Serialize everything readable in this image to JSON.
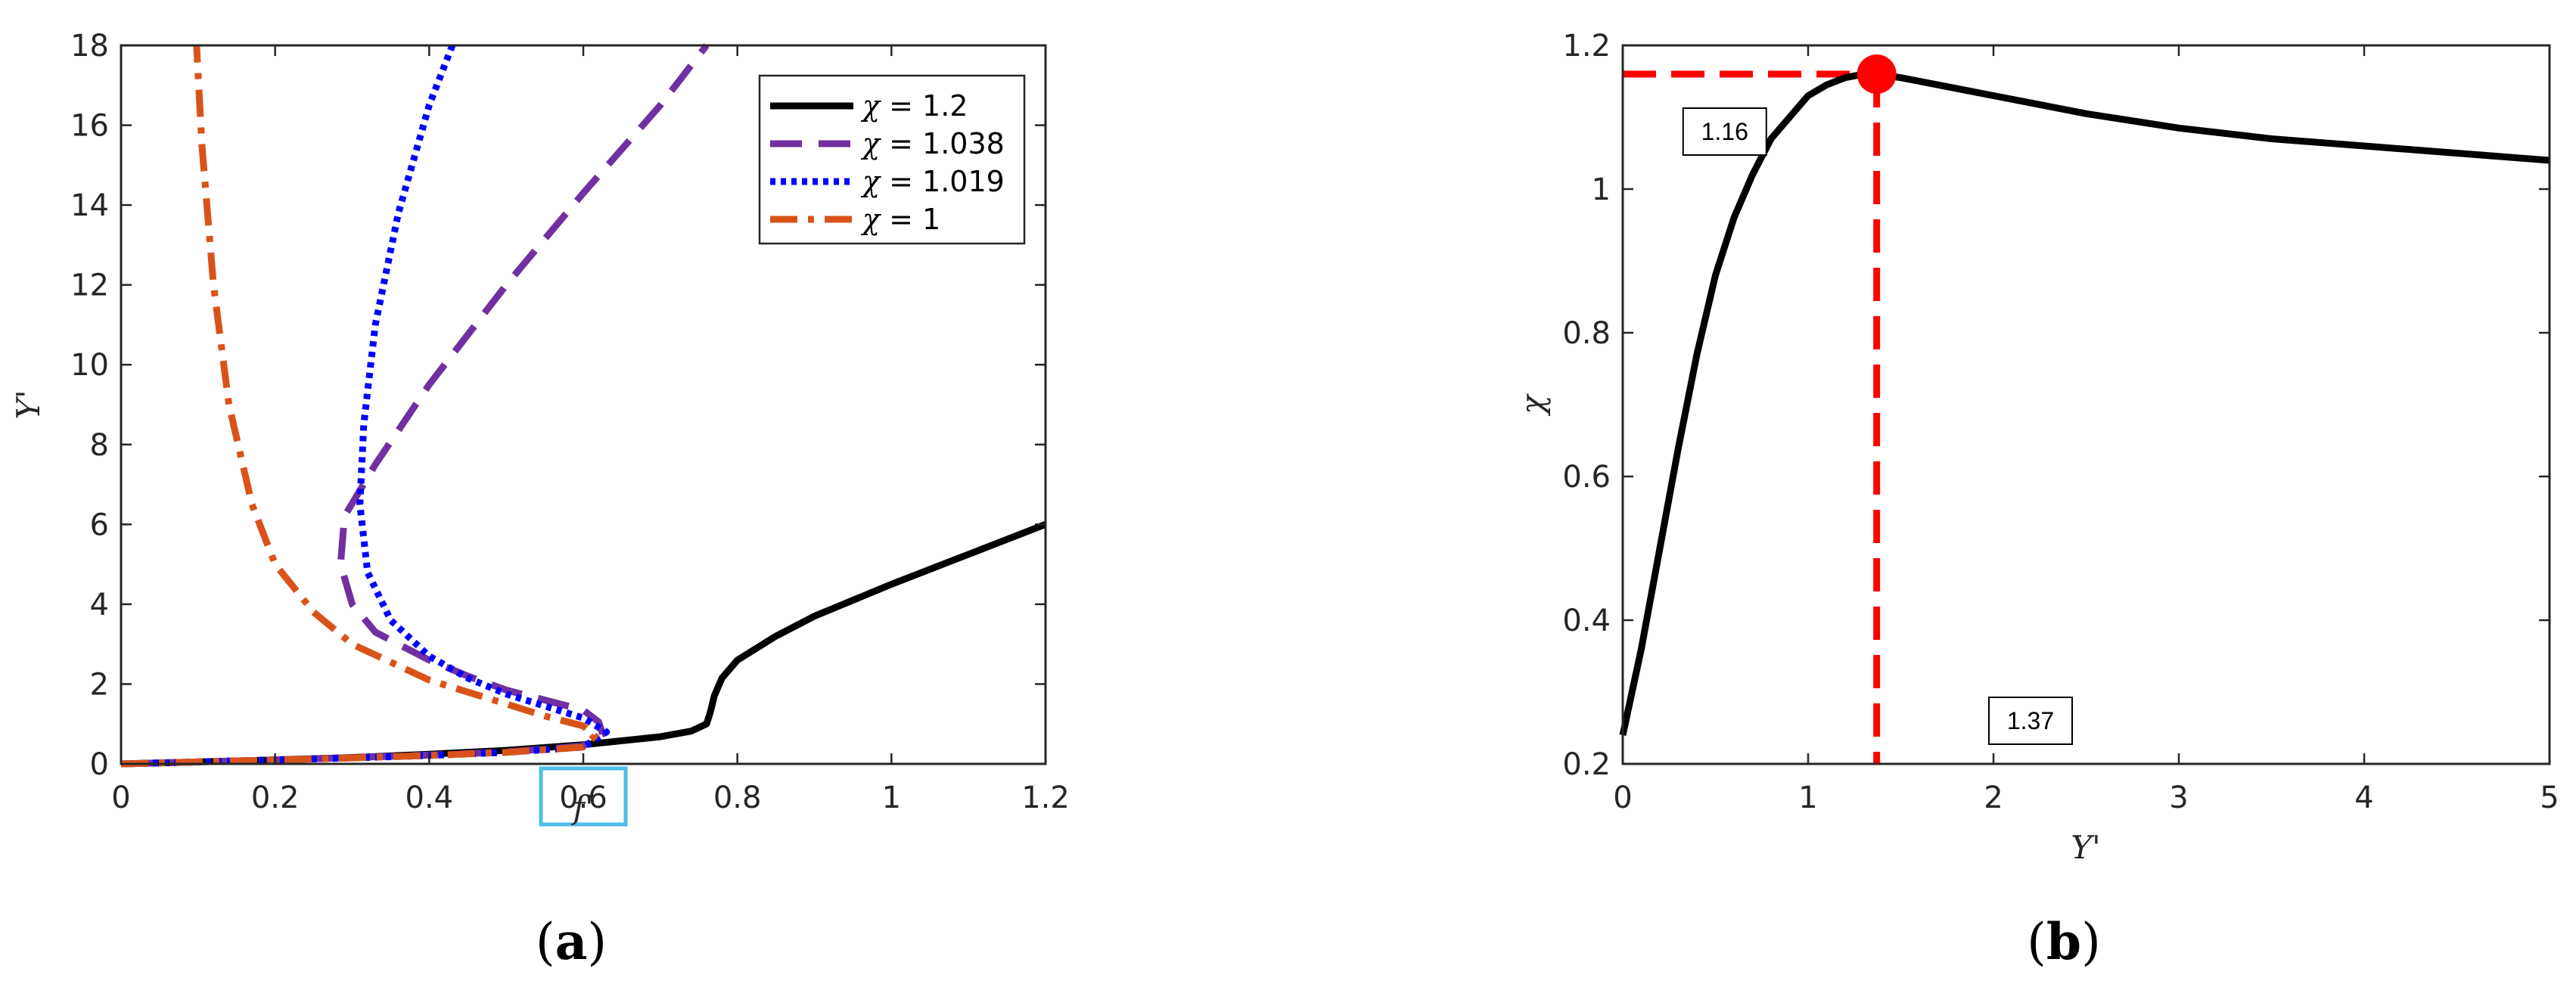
{
  "figure": {
    "panel_a_label": {
      "open": "(",
      "letter": "a",
      "close": ")"
    },
    "panel_b_label": {
      "open": "(",
      "letter": "b",
      "close": ")"
    }
  },
  "chart_data": [
    {
      "type": "line",
      "panel": "a",
      "title": "",
      "xlabel": "f'",
      "ylabel": "Y'",
      "xlim": [
        0,
        1.2
      ],
      "ylim": [
        0,
        18
      ],
      "xticks": [
        0,
        0.2,
        0.4,
        0.6,
        0.8,
        1,
        1.2
      ],
      "xtick_labels": [
        "0",
        "0.2",
        "0.4",
        "0.6",
        "0.8",
        "1",
        "1.2"
      ],
      "yticks": [
        0,
        2,
        4,
        6,
        8,
        10,
        12,
        14,
        16,
        18
      ],
      "ytick_labels": [
        "0",
        "2",
        "4",
        "6",
        "8",
        "10",
        "12",
        "14",
        "16",
        "18"
      ],
      "grid": false,
      "legend_position": "top-right",
      "highlight_box_around_tick": "0.6",
      "highlight_color": "#4dbde8",
      "series": [
        {
          "name": "χ = 1.2",
          "legend_symbol": "χ",
          "legend_value": " = 1.2",
          "color": "#000000",
          "style": "solid",
          "x": [
            0,
            0.1,
            0.2,
            0.3,
            0.4,
            0.5,
            0.6,
            0.7,
            0.74,
            0.76,
            0.765,
            0.77,
            0.78,
            0.8,
            0.85,
            0.9,
            1.0,
            1.1,
            1.2
          ],
          "y": [
            0,
            0.05,
            0.1,
            0.16,
            0.24,
            0.34,
            0.48,
            0.68,
            0.82,
            1.0,
            1.3,
            1.7,
            2.15,
            2.6,
            3.2,
            3.7,
            4.5,
            5.25,
            6.0
          ]
        },
        {
          "name": "χ = 1.038",
          "legend_symbol": "χ",
          "legend_value": " = 1.038",
          "color": "#7030a0",
          "style": "dashed",
          "x": [
            0,
            0.1,
            0.2,
            0.3,
            0.4,
            0.5,
            0.6,
            0.625,
            0.62,
            0.6,
            0.55,
            0.5,
            0.45,
            0.4,
            0.33,
            0.3,
            0.285,
            0.29,
            0.33,
            0.4,
            0.5,
            0.6,
            0.7,
            0.76
          ],
          "y": [
            0,
            0.05,
            0.1,
            0.16,
            0.22,
            0.3,
            0.45,
            0.75,
            1.05,
            1.35,
            1.6,
            1.85,
            2.2,
            2.6,
            3.3,
            4.0,
            5.0,
            6.2,
            7.5,
            9.5,
            12.0,
            14.3,
            16.5,
            18.0
          ]
        },
        {
          "name": "χ = 1.019",
          "legend_symbol": "χ",
          "legend_value": " = 1.019",
          "color": "#0000ff",
          "style": "dotted",
          "x": [
            0,
            0.1,
            0.2,
            0.3,
            0.4,
            0.5,
            0.6,
            0.63,
            0.6,
            0.55,
            0.5,
            0.45,
            0.4,
            0.35,
            0.32,
            0.31,
            0.315,
            0.33,
            0.36,
            0.4,
            0.43
          ],
          "y": [
            0,
            0.05,
            0.1,
            0.15,
            0.21,
            0.29,
            0.42,
            0.8,
            1.15,
            1.45,
            1.75,
            2.15,
            2.7,
            3.6,
            4.8,
            6.5,
            8.5,
            11.0,
            13.8,
            16.5,
            18.0
          ]
        },
        {
          "name": "χ = 1",
          "legend_symbol": "χ",
          "legend_value": " = 1",
          "color": "#d95319",
          "style": "dashdot",
          "x": [
            0,
            0.1,
            0.2,
            0.3,
            0.4,
            0.5,
            0.6,
            0.615,
            0.6,
            0.55,
            0.5,
            0.4,
            0.3,
            0.25,
            0.2,
            0.17,
            0.14,
            0.12,
            0.105,
            0.098
          ],
          "y": [
            0,
            0.05,
            0.1,
            0.15,
            0.21,
            0.29,
            0.42,
            0.7,
            0.95,
            1.2,
            1.5,
            2.1,
            3.0,
            3.8,
            5.0,
            6.5,
            9.0,
            12.0,
            15.5,
            18.0
          ]
        }
      ]
    },
    {
      "type": "line",
      "panel": "b",
      "title": "",
      "xlabel": "Y'",
      "ylabel": "χ",
      "xlim": [
        0,
        5
      ],
      "ylim": [
        0.2,
        1.2
      ],
      "xticks": [
        0,
        1,
        2,
        3,
        4,
        5
      ],
      "xtick_labels": [
        "0",
        "1",
        "2",
        "3",
        "4",
        "5"
      ],
      "yticks": [
        0.2,
        0.4,
        0.6,
        0.8,
        1.0,
        1.2
      ],
      "ytick_labels": [
        "0.2",
        "0.4",
        "0.6",
        "0.8",
        "1",
        "1.2"
      ],
      "grid": false,
      "series": [
        {
          "color": "#000000",
          "style": "solid",
          "x": [
            0,
            0.1,
            0.2,
            0.3,
            0.4,
            0.5,
            0.6,
            0.7,
            0.8,
            0.9,
            1.0,
            1.1,
            1.2,
            1.3,
            1.37,
            1.5,
            1.7,
            2.0,
            2.5,
            3.0,
            3.5,
            4.0,
            4.5,
            5.0
          ],
          "y": [
            0.24,
            0.36,
            0.5,
            0.64,
            0.77,
            0.88,
            0.96,
            1.02,
            1.07,
            1.1,
            1.13,
            1.145,
            1.155,
            1.16,
            1.16,
            1.155,
            1.145,
            1.13,
            1.105,
            1.085,
            1.07,
            1.06,
            1.05,
            1.04
          ]
        }
      ],
      "marker": {
        "x": 1.37,
        "y": 1.16,
        "color": "#ff0000"
      },
      "annotations": [
        {
          "text": "1.16",
          "x": 0.55,
          "y": 1.08
        },
        {
          "text": "1.37",
          "x": 2.2,
          "y": 0.26
        }
      ],
      "reference_line_color": "#ff0000"
    }
  ]
}
